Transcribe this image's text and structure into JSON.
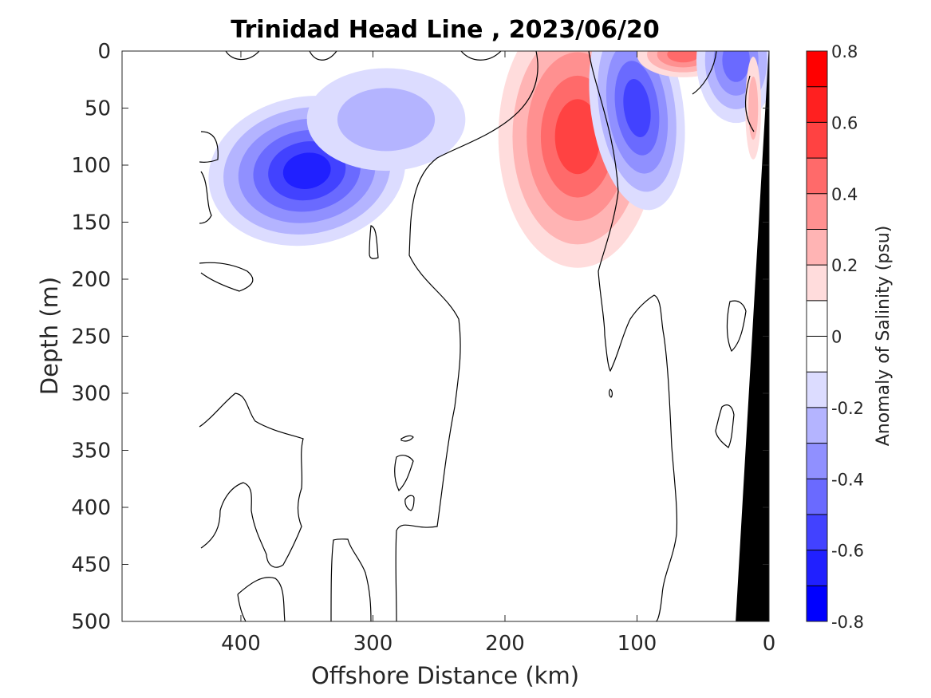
{
  "chart_data": {
    "type": "heatmap",
    "title": "Trinidad Head Line , 2023/06/20",
    "xlabel": "Offshore Distance (km)",
    "ylabel": "Depth (m)",
    "xlim": [
      490,
      0
    ],
    "ylim": [
      0,
      500
    ],
    "x_ticks": [
      "400",
      "300",
      "200",
      "100",
      "0"
    ],
    "y_ticks": [
      "0",
      "50",
      "100",
      "150",
      "200",
      "250",
      "300",
      "350",
      "400",
      "450",
      "500"
    ],
    "x_tick_values": [
      400,
      300,
      200,
      100,
      0
    ],
    "y_tick_values": [
      0,
      50,
      100,
      150,
      200,
      250,
      300,
      350,
      400,
      450,
      500
    ],
    "colorbar": {
      "label": "Anomaly of Salinity (psu)",
      "range": [
        -0.8,
        0.8
      ],
      "tick_labels": [
        "0.8",
        "0.6",
        "0.4",
        "0.2",
        "0",
        "-0.2",
        "-0.4",
        "-0.6",
        "-0.8"
      ],
      "tick_values": [
        0.8,
        0.6,
        0.4,
        0.2,
        0,
        -0.2,
        -0.4,
        -0.6,
        -0.8
      ],
      "levels_top_to_bottom": [
        {
          "range": [
            0.7,
            0.8
          ],
          "color": "#ff0000"
        },
        {
          "range": [
            0.6,
            0.7
          ],
          "color": "#ff2020"
        },
        {
          "range": [
            0.5,
            0.6
          ],
          "color": "#ff4242"
        },
        {
          "range": [
            0.4,
            0.5
          ],
          "color": "#ff6a6a"
        },
        {
          "range": [
            0.3,
            0.4
          ],
          "color": "#ff9090"
        },
        {
          "range": [
            0.2,
            0.3
          ],
          "color": "#ffb4b4"
        },
        {
          "range": [
            0.1,
            0.2
          ],
          "color": "#ffdcdc"
        },
        {
          "range": [
            0.0,
            0.1
          ],
          "color": "#ffffff"
        },
        {
          "range": [
            -0.1,
            0.0
          ],
          "color": "#ffffff"
        },
        {
          "range": [
            -0.2,
            -0.1
          ],
          "color": "#dcdcff"
        },
        {
          "range": [
            -0.3,
            -0.2
          ],
          "color": "#b4b4ff"
        },
        {
          "range": [
            -0.4,
            -0.3
          ],
          "color": "#9090ff"
        },
        {
          "range": [
            -0.5,
            -0.4
          ],
          "color": "#6a6aff"
        },
        {
          "range": [
            -0.6,
            -0.5
          ],
          "color": "#4242ff"
        },
        {
          "range": [
            -0.7,
            -0.6
          ],
          "color": "#2020ff"
        },
        {
          "range": [
            -0.8,
            -0.7
          ],
          "color": "#0000ff"
        }
      ]
    },
    "features": [
      {
        "kind": "negative_anomaly",
        "center_km": 350,
        "center_depth_m": 105,
        "min_value": -0.7
      },
      {
        "kind": "negative_anomaly",
        "center_km": 290,
        "center_depth_m": 60,
        "min_value": -0.3
      },
      {
        "kind": "positive_anomaly",
        "center_km": 145,
        "center_depth_m": 75,
        "max_value": 0.6
      },
      {
        "kind": "negative_anomaly",
        "center_km": 100,
        "center_depth_m": 50,
        "min_value": -0.6
      },
      {
        "kind": "positive_anomaly",
        "center_km": 65,
        "center_depth_m": 3,
        "max_value": 0.5
      },
      {
        "kind": "negative_anomaly",
        "center_km": 25,
        "center_depth_m": 8,
        "min_value": -0.5
      },
      {
        "kind": "positive_anomaly",
        "center_km": 12,
        "center_depth_m": 50,
        "max_value": 0.3
      }
    ],
    "bathymetry": {
      "color": "#000000",
      "shelf_km_at_surface": 0,
      "shelf_km_at_500m": 25
    }
  }
}
